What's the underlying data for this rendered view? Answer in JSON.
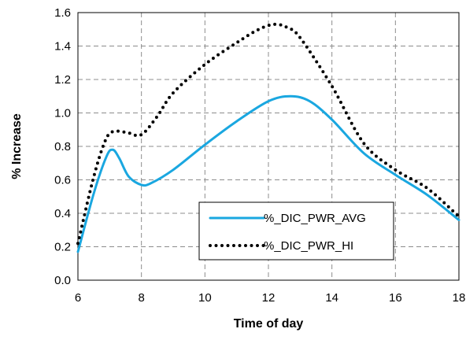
{
  "chart_data": {
    "type": "line",
    "title": "",
    "xlabel": "Time of day",
    "ylabel": "% Increase",
    "xlim": [
      6,
      18
    ],
    "ylim": [
      0.0,
      1.6
    ],
    "xticks": [
      6,
      8,
      10,
      12,
      14,
      16,
      18
    ],
    "yticks": [
      0.0,
      0.2,
      0.4,
      0.6,
      0.8,
      1.0,
      1.2,
      1.4,
      1.6
    ],
    "xtick_labels": [
      "6",
      "8",
      "10",
      "12",
      "14",
      "16",
      "18"
    ],
    "ytick_labels": [
      "0.0",
      "0.2",
      "0.4",
      "0.6",
      "0.8",
      "1.0",
      "1.2",
      "1.4",
      "1.6"
    ],
    "grid": true,
    "legend_position": "lower-right",
    "series": [
      {
        "name": "%_DIC_PWR_AVG",
        "color": "#1aa7e0",
        "style": "solid",
        "x": [
          6.0,
          6.5,
          6.9,
          7.1,
          7.3,
          7.6,
          8.0,
          8.3,
          9.0,
          10.0,
          11.0,
          12.0,
          12.7,
          13.3,
          14.0,
          15.0,
          16.0,
          17.0,
          18.0
        ],
        "y": [
          0.17,
          0.52,
          0.74,
          0.78,
          0.73,
          0.62,
          0.57,
          0.58,
          0.66,
          0.81,
          0.95,
          1.07,
          1.1,
          1.07,
          0.96,
          0.76,
          0.63,
          0.51,
          0.36
        ]
      },
      {
        "name": "%_DIC_PWR_HI",
        "color": "#000000",
        "style": "dotted",
        "x": [
          6.0,
          6.5,
          6.9,
          7.2,
          7.6,
          8.0,
          8.5,
          9.0,
          10.0,
          11.0,
          11.7,
          12.2,
          12.6,
          13.0,
          14.0,
          15.0,
          16.0,
          17.0,
          18.0
        ],
        "y": [
          0.22,
          0.62,
          0.85,
          0.89,
          0.88,
          0.87,
          0.98,
          1.12,
          1.29,
          1.42,
          1.5,
          1.53,
          1.51,
          1.45,
          1.16,
          0.82,
          0.66,
          0.55,
          0.38
        ]
      }
    ]
  }
}
